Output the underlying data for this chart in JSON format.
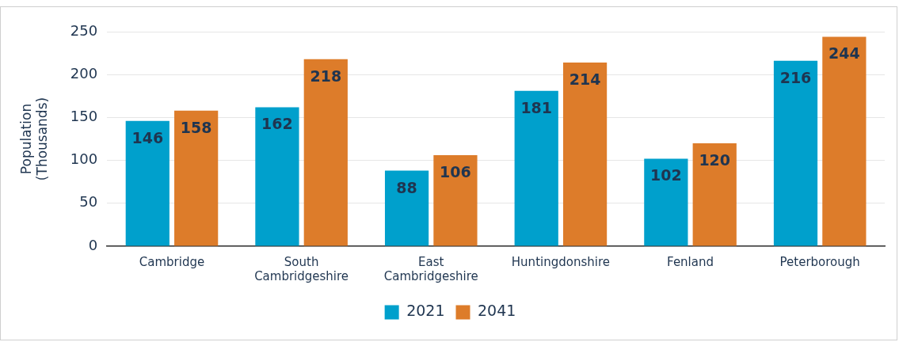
{
  "chart_data": {
    "type": "bar",
    "ylabel": "Population (Thousands)",
    "categories": [
      "Cambridge",
      "South Cambridgeshire",
      "East Cambridgeshire",
      "Huntingdonshire",
      "Fenland",
      "Peterborough"
    ],
    "series": [
      {
        "name": "2021",
        "color": "#00a0cc",
        "values": [
          146,
          162,
          88,
          181,
          102,
          216
        ]
      },
      {
        "name": "2041",
        "color": "#dd7c2a",
        "values": [
          158,
          218,
          106,
          214,
          120,
          244
        ]
      }
    ],
    "ylim": [
      0,
      250
    ],
    "yticks": [
      0,
      50,
      100,
      150,
      200,
      250
    ],
    "grid": "y",
    "legend": "bottom",
    "data_labels": true
  }
}
